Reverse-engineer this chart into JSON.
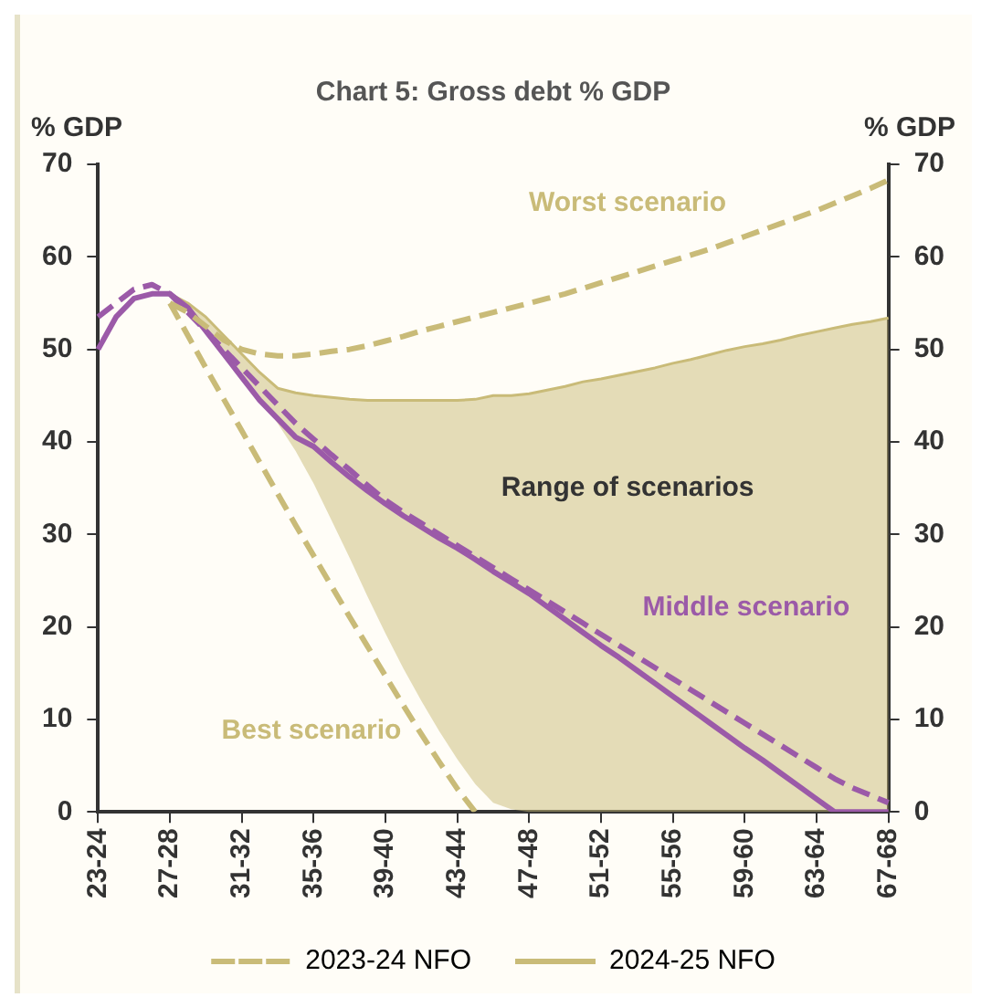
{
  "chart_data": {
    "type": "line",
    "title": "Chart 5: Gross debt % GDP",
    "ylabel": "% GDP",
    "y2label": "% GDP",
    "categories": [
      "23-24",
      null,
      null,
      null,
      "27-28",
      null,
      null,
      null,
      "31-32",
      null,
      null,
      null,
      "35-36",
      null,
      null,
      null,
      "39-40",
      null,
      null,
      null,
      "43-44",
      null,
      null,
      null,
      "47-48",
      null,
      null,
      null,
      "51-52",
      null,
      null,
      null,
      "55-56",
      null,
      null,
      null,
      "59-60",
      null,
      null,
      null,
      "63-64",
      null,
      null,
      null,
      "67-68"
    ],
    "series": [
      {
        "name": "2023-24 NFO",
        "color": "#c9bb78",
        "line_style": "dashed",
        "values": [
          null,
          null,
          null,
          null,
          55,
          54,
          52.5,
          51,
          50,
          49.5,
          49.3,
          49.3,
          49.5,
          49.8,
          50,
          50.4,
          50.9,
          51.4,
          52,
          52.5,
          53,
          53.5,
          54,
          54.5,
          55,
          55.5,
          56,
          56.6,
          57.2,
          57.8,
          58.4,
          59,
          59.6,
          60.2,
          60.8,
          61.5,
          62.2,
          62.9,
          63.6,
          64.3,
          65,
          65.8,
          66.6,
          67.4,
          68.3
        ]
      },
      {
        "color": "#c9bb78",
        "line_style": "dashed",
        "values": [
          null,
          null,
          null,
          null,
          55,
          51.5,
          48,
          44.6,
          41.2,
          37.8,
          34.4,
          31,
          27.7,
          24.4,
          21.1,
          17.9,
          14.7,
          11.5,
          8.4,
          5.4,
          2.5,
          0,
          null,
          null,
          null,
          null,
          null,
          null,
          null,
          null,
          null,
          null,
          null,
          null,
          null,
          null,
          null,
          null,
          null,
          null,
          null,
          null,
          null,
          null,
          null
        ]
      },
      {
        "name": "2024-25 NFO",
        "color": "#c9bb78",
        "line_style": "solid",
        "values": [
          null,
          null,
          null,
          null,
          56,
          55,
          53.5,
          51.5,
          49.5,
          47.5,
          45.8,
          45.3,
          45,
          44.8,
          44.6,
          44.5,
          44.5,
          44.5,
          44.5,
          44.5,
          44.5,
          44.6,
          45,
          45,
          45.2,
          45.6,
          46,
          46.5,
          46.8,
          47.2,
          47.6,
          48,
          48.5,
          48.9,
          49.4,
          49.9,
          50.3,
          50.6,
          51,
          51.5,
          51.9,
          52.3,
          52.7,
          53,
          53.4
        ],
        "upper": [
          null,
          null,
          null,
          null,
          56,
          55,
          53.5,
          51.5,
          49.5,
          47.5,
          45.8,
          45.3,
          45,
          44.8,
          44.6,
          44.5,
          44.5,
          44.5,
          44.5,
          44.5,
          44.5,
          44.6,
          45,
          45,
          45.2,
          45.6,
          46,
          46.5,
          46.8,
          47.2,
          47.6,
          48,
          48.5,
          48.9,
          49.4,
          49.9,
          50.3,
          50.6,
          51,
          51.5,
          51.9,
          52.3,
          52.7,
          53,
          53.4
        ],
        "lower": [
          null,
          null,
          null,
          null,
          56,
          54,
          52,
          50,
          47.5,
          45,
          42,
          39,
          35.5,
          31.5,
          27.5,
          23.3,
          19.3,
          15.5,
          12,
          8.7,
          5.7,
          3,
          1,
          0.3,
          0,
          0,
          0,
          0,
          0,
          0,
          0,
          0,
          0,
          0,
          0,
          0,
          0,
          0,
          0,
          0,
          0,
          0,
          0,
          0,
          0
        ]
      },
      {
        "color": "#9b5aa8",
        "line_style": "dashed",
        "values": [
          53.5,
          55,
          56.5,
          57,
          56,
          54,
          52,
          50,
          48,
          46,
          44,
          42,
          40.3,
          38.6,
          37,
          35.3,
          33.7,
          32.4,
          31.2,
          30,
          28.8,
          27.6,
          26.4,
          25.2,
          24,
          22.8,
          21.6,
          20.4,
          19.2,
          18,
          16.8,
          15.6,
          14.4,
          13.2,
          12,
          10.8,
          9.6,
          8.4,
          7.2,
          6,
          4.8,
          3.6,
          2.6,
          1.8,
          1
        ]
      },
      {
        "color": "#9b5aa8",
        "line_style": "solid",
        "values": [
          50,
          53.5,
          55.5,
          56,
          56,
          54.5,
          52,
          49.5,
          47,
          44.5,
          42.5,
          40.5,
          39.5,
          37.8,
          36.2,
          34.7,
          33.3,
          32,
          30.8,
          29.6,
          28.5,
          27.3,
          26,
          24.8,
          23.6,
          22.2,
          20.8,
          19.4,
          18,
          16.7,
          15.3,
          13.9,
          12.5,
          11.1,
          9.7,
          8.3,
          6.9,
          5.6,
          4.2,
          2.8,
          1.4,
          0,
          0,
          0,
          0
        ]
      }
    ],
    "ylim": [
      0,
      70
    ],
    "yticks": [
      0,
      10,
      20,
      30,
      40,
      50,
      60,
      70
    ],
    "y2lim": [
      0,
      70
    ],
    "y2ticks": [
      0,
      10,
      20,
      30,
      40,
      50,
      60,
      70
    ],
    "grid": false,
    "legend": "bottom",
    "marker": "none",
    "annotations": [
      "Worst scenario",
      "Range of scenarios",
      "Middle scenario",
      "Best scenario"
    ]
  }
}
